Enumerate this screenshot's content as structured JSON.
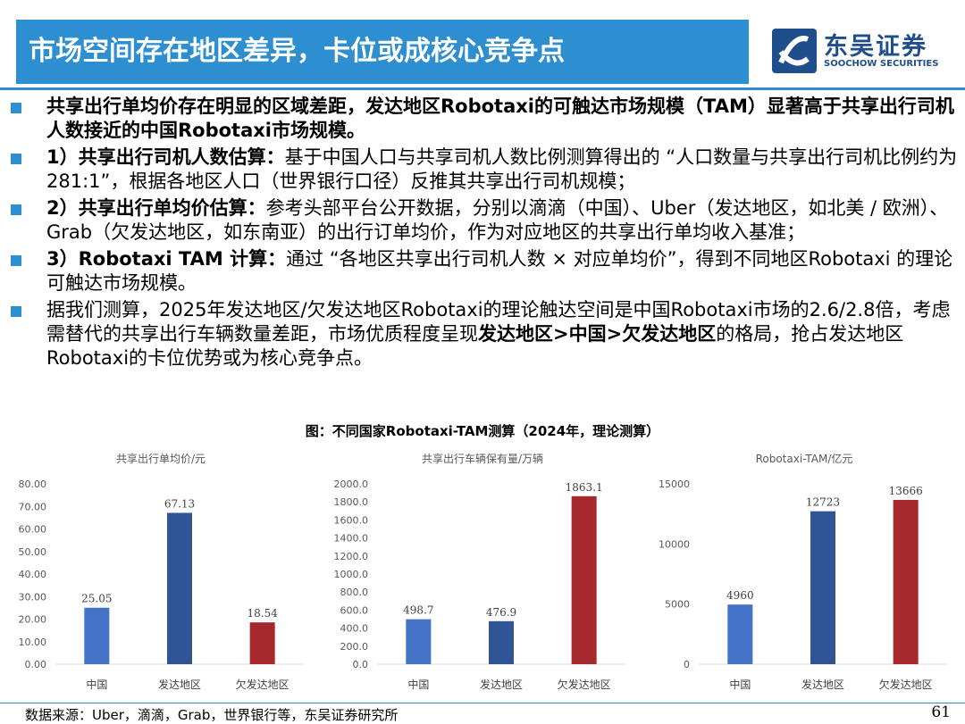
{
  "header": {
    "title": "市场空间存在地区差异，卡位或成核心竞争点",
    "logo_cn": "东吴证券",
    "logo_en": "SOOCHOW SECURITIES"
  },
  "bullets": [
    {
      "bold": "共享出行单均价存在明显的区域差距，发达地区Robotaxi的可触达市场规模（TAM）显著高于共享出行司机人数接近的中国Robotaxi市场规模。",
      "text": ""
    },
    {
      "bold": "1）共享出行司机人数估算：",
      "text": "基于中国人口与共享司机人数比例测算得出的  “人口数量与共享出行司机比例约为281:1”，根据各地区人口（世界银行口径）反推其共享出行司机规模；"
    },
    {
      "bold": "2）共享出行单均价估算：",
      "text": "参考头部平台公开数据，分别以滴滴（中国）、Uber（发达地区，如北美 / 欧洲）、Grab（欠发达地区，如东南亚）的出行订单均价，作为对应地区的共享出行单均收入基准；"
    },
    {
      "bold": "3）Robotaxi TAM 计算：",
      "text": "通过  “各地区共享出行司机人数 × 对应单均价”，得到不同地区Robotaxi 的理论可触达市场规模。"
    },
    {
      "bold": "",
      "text": "据我们测算，2025年发达地区/欠发达地区Robotaxi的理论触达空间是中国Robotaxi市场的2.6/2.8倍，考虑需替代的共享出行车辆数量差距，市场优质程度呈现",
      "bold2": "发达地区>中国>欠发达地区",
      "text2": "的格局，抢占发达地区Robotaxi的卡位优势或为核心竞争点。"
    }
  ],
  "figure_title": "图：不同国家Robotaxi-TAM测算（2024年，理论测算）",
  "chart_data": [
    {
      "type": "bar",
      "title": "共享出行单均价/元",
      "categories": [
        "中国",
        "发达地区",
        "欠发达地区"
      ],
      "values": [
        25.05,
        67.13,
        18.54
      ],
      "value_labels": [
        "25.05",
        "67.13",
        "18.54"
      ],
      "colors": [
        "#4472c4",
        "#2f5597",
        "#a5282c"
      ],
      "ylim": [
        0,
        80
      ],
      "yticks": [
        "0.00",
        "10.00",
        "20.00",
        "30.00",
        "40.00",
        "50.00",
        "60.00",
        "70.00",
        "80.00"
      ],
      "ytick_values": [
        0,
        10,
        20,
        30,
        40,
        50,
        60,
        70,
        80
      ]
    },
    {
      "type": "bar",
      "title": "共享出行车辆保有量/万辆",
      "categories": [
        "中国",
        "发达地区",
        "欠发达地区"
      ],
      "values": [
        498.7,
        476.9,
        1863.1
      ],
      "value_labels": [
        "498.7",
        "476.9",
        "1863.1"
      ],
      "colors": [
        "#4472c4",
        "#2f5597",
        "#a5282c"
      ],
      "ylim": [
        0,
        2000
      ],
      "yticks": [
        "0.0",
        "200.0",
        "400.0",
        "600.0",
        "800.0",
        "1000.0",
        "1200.0",
        "1400.0",
        "1600.0",
        "1800.0",
        "2000.0"
      ],
      "ytick_values": [
        0,
        200,
        400,
        600,
        800,
        1000,
        1200,
        1400,
        1600,
        1800,
        2000
      ]
    },
    {
      "type": "bar",
      "title": "Robotaxi-TAM/亿元",
      "categories": [
        "中国",
        "发达地区",
        "欠发达地区"
      ],
      "values": [
        4960,
        12723,
        13666
      ],
      "value_labels": [
        "4960",
        "12723",
        "13666"
      ],
      "colors": [
        "#4472c4",
        "#2f5597",
        "#a5282c"
      ],
      "ylim": [
        0,
        15000
      ],
      "yticks": [
        "0",
        "5000",
        "10000",
        "15000"
      ],
      "ytick_values": [
        0,
        5000,
        10000,
        15000
      ]
    }
  ],
  "footer": {
    "source": "数据来源：Uber，滴滴，Grab，世界银行等，东吴证券研究所",
    "page": "61"
  }
}
